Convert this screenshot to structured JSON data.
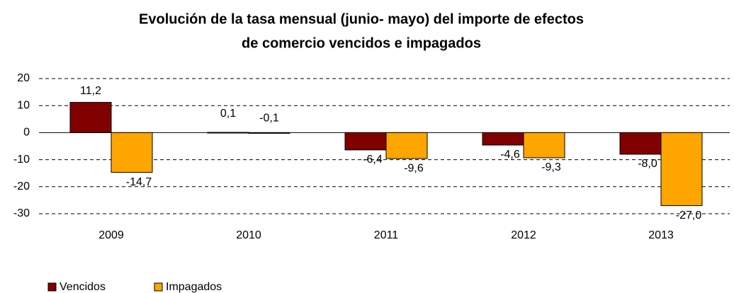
{
  "chart_data": {
    "type": "bar",
    "title": [
      "Evolución de la tasa mensual (junio- mayo) del importe de efectos",
      "de comercio vencidos e impagados"
    ],
    "categories": [
      "2009",
      "2010",
      "2011",
      "2012",
      "2013"
    ],
    "series": [
      {
        "name": "Vencidos",
        "color": "#800000",
        "values": [
          11.2,
          0.1,
          -6.4,
          -4.6,
          -8.0
        ],
        "value_labels": [
          "11,2",
          "0,1",
          "-6,4",
          "-4,6",
          "-8,0"
        ]
      },
      {
        "name": "Impagados",
        "color": "#ffa500",
        "values": [
          -14.7,
          -0.1,
          -9.6,
          -9.3,
          -27.0
        ],
        "value_labels": [
          "-14,7",
          "-0,1",
          "-9,6",
          "-9,3",
          "-27,0"
        ]
      }
    ],
    "ylim": [
      -30,
      20
    ],
    "yticks": [
      -30,
      -20,
      -10,
      0,
      10,
      20
    ],
    "grid": true,
    "legend": "bottom-left"
  }
}
